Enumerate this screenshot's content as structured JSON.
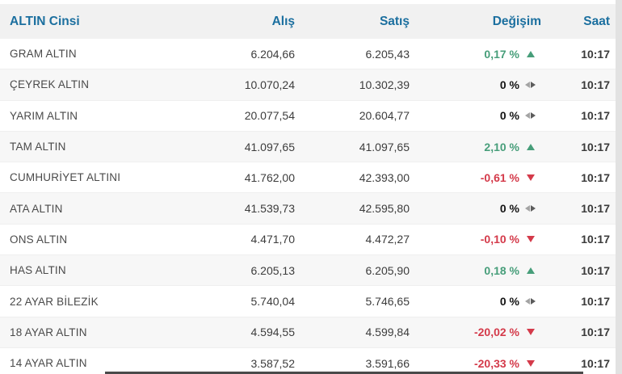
{
  "colors": {
    "header_text": "#1b6f9f",
    "header_bg": "#f1f1f1",
    "row_alt_bg": "#f7f7f7",
    "up": "#479e7a",
    "down": "#d43a4a",
    "neutral_text": "#141414"
  },
  "table": {
    "columns": [
      {
        "key": "name",
        "label": "ALTIN Cinsi"
      },
      {
        "key": "buy",
        "label": "Alış"
      },
      {
        "key": "sell",
        "label": "Satış"
      },
      {
        "key": "change",
        "label": "Değişim"
      },
      {
        "key": "time",
        "label": "Saat"
      }
    ],
    "rows": [
      {
        "name": "GRAM ALTIN",
        "buy": "6.204,66",
        "sell": "6.205,43",
        "change": "0,17 %",
        "direction": "up",
        "time": "10:17"
      },
      {
        "name": "ÇEYREK ALTIN",
        "buy": "10.070,24",
        "sell": "10.302,39",
        "change": "0 %",
        "direction": "neutral",
        "time": "10:17"
      },
      {
        "name": "YARIM ALTIN",
        "buy": "20.077,54",
        "sell": "20.604,77",
        "change": "0 %",
        "direction": "neutral",
        "time": "10:17"
      },
      {
        "name": "TAM ALTIN",
        "buy": "41.097,65",
        "sell": "41.097,65",
        "change": "2,10 %",
        "direction": "up",
        "time": "10:17"
      },
      {
        "name": "CUMHURİYET ALTINI",
        "buy": "41.762,00",
        "sell": "42.393,00",
        "change": "-0,61 %",
        "direction": "down",
        "time": "10:17"
      },
      {
        "name": "ATA ALTIN",
        "buy": "41.539,73",
        "sell": "42.595,80",
        "change": "0 %",
        "direction": "neutral",
        "time": "10:17"
      },
      {
        "name": "ONS ALTIN",
        "buy": "4.471,70",
        "sell": "4.472,27",
        "change": "-0,10 %",
        "direction": "down",
        "time": "10:17"
      },
      {
        "name": "HAS ALTIN",
        "buy": "6.205,13",
        "sell": "6.205,90",
        "change": "0,18 %",
        "direction": "up",
        "time": "10:17"
      },
      {
        "name": "22 AYAR BİLEZİK",
        "buy": "5.740,04",
        "sell": "5.746,65",
        "change": "0 %",
        "direction": "neutral",
        "time": "10:17"
      },
      {
        "name": "18 AYAR ALTIN",
        "buy": "4.594,55",
        "sell": "4.599,84",
        "change": "-20,02 %",
        "direction": "down",
        "time": "10:17"
      },
      {
        "name": "14 AYAR ALTIN",
        "buy": "3.587,52",
        "sell": "3.591,66",
        "change": "-20,33 %",
        "direction": "down",
        "time": "10:17"
      }
    ]
  }
}
